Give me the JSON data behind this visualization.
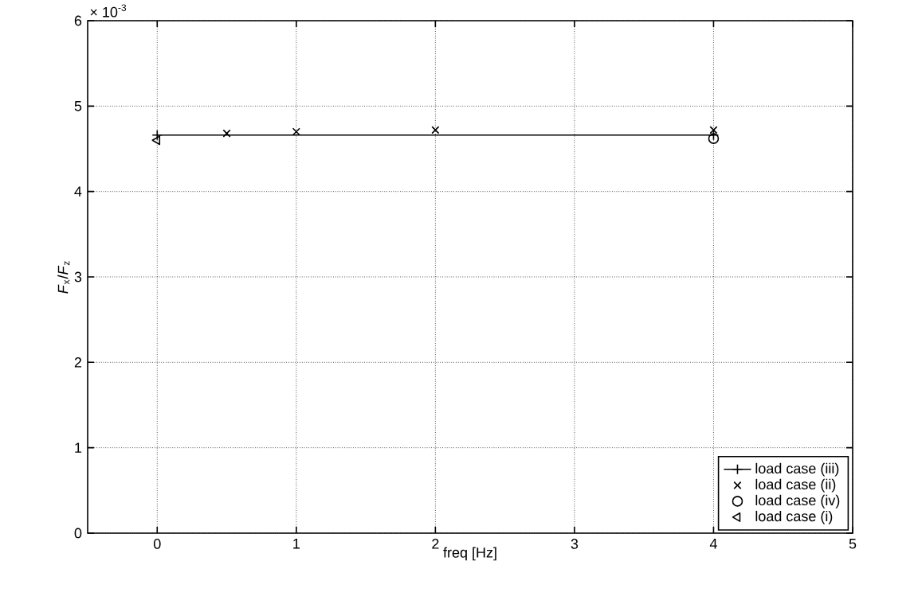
{
  "chart_data": {
    "type": "line",
    "xlabel": "freq [Hz]",
    "ylabel": "*F*$_{x}$/*F*$_{z}$",
    "annotations": [
      "× 10$^{-3}$"
    ],
    "xlim": [
      -0.5,
      5
    ],
    "xticks": [
      0,
      1,
      2,
      3,
      4,
      5
    ],
    "ylim": [
      0,
      6
    ],
    "yticks": [
      0,
      1,
      2,
      3,
      4,
      5,
      6
    ],
    "grid": true,
    "legend": "bottom right",
    "series": [
      {
        "name": "load case (iii)",
        "color": "#000000",
        "marker": "plus",
        "line_style": "solid",
        "x": [
          0,
          4
        ],
        "values": [
          4.66,
          4.66
        ]
      },
      {
        "name": "load case (ii)",
        "type": "scatter",
        "color": "#000000",
        "marker": "cross",
        "x": [
          0.5,
          1,
          2,
          4
        ],
        "values": [
          4.68,
          4.7,
          4.72,
          4.72
        ]
      },
      {
        "name": "load case (iv)",
        "type": "scatter",
        "color": "#000000",
        "marker": "circle",
        "x": [
          4
        ],
        "values": [
          4.62
        ]
      },
      {
        "name": "load case (i)",
        "type": "scatter",
        "color": "#000000",
        "marker": "triangle",
        "x": [
          0
        ],
        "values": [
          4.6
        ]
      }
    ]
  }
}
